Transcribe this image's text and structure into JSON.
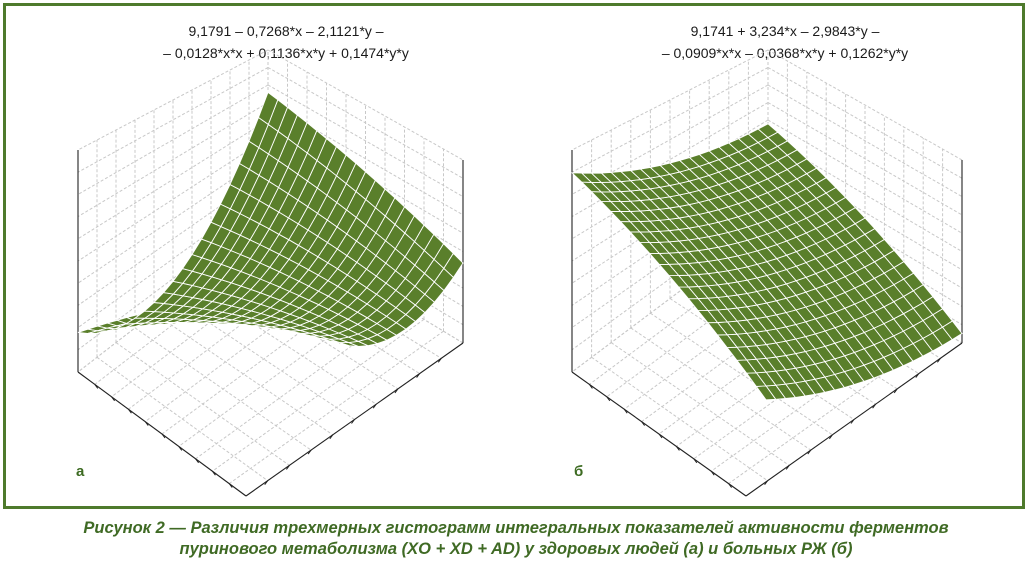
{
  "chart_data": [
    {
      "type": "surface",
      "panel_label": "а",
      "equation_line1": "9,1791 – 0,7268*x – 2,1121*y –",
      "equation_line2": "– 0,0128*x*x + 0,1136*x*y + 0,1474*y*y",
      "coefficients": {
        "c": 9.1791,
        "x": -0.7268,
        "y": -2.1121,
        "xx": -0.0128,
        "xy": 0.1136,
        "yy": 0.1474
      },
      "grid": true,
      "surface_color": "#5a7f2b"
    },
    {
      "type": "surface",
      "panel_label": "б",
      "equation_line1": "9,1741 + 3,234*x – 2,9843*y –",
      "equation_line2": "– 0,0909*x*x – 0,0368*x*y + 0,1262*y*y",
      "coefficients": {
        "c": 9.1741,
        "x": 3.234,
        "y": -2.9843,
        "xx": -0.0909,
        "xy": -0.0368,
        "yy": 0.1262
      },
      "grid": true,
      "surface_color": "#5a7f2b"
    }
  ],
  "caption": {
    "line1": "Рисунок 2 — Различия трехмерных гистограмм интегральных показателей активности ферментов",
    "line2": "пуринового метаболизма (XO + XD + AD) у здоровых людей (а) и больных РЖ (б)"
  },
  "colors": {
    "frame": "#4e7a2c",
    "caption": "#3f6a24",
    "surface": "#5a7f2b"
  }
}
